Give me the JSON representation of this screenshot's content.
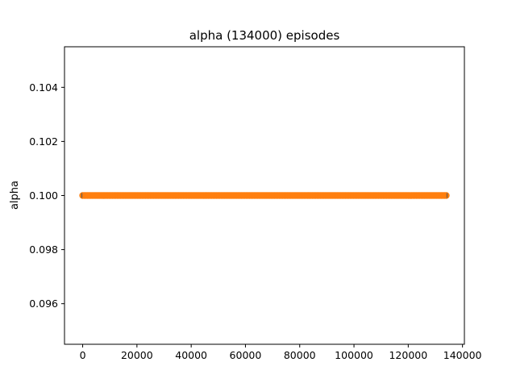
{
  "chart_data": {
    "type": "line",
    "title": "alpha (134000) episodes",
    "xlabel": "",
    "ylabel": "alpha",
    "xlim": [
      -6700,
      140700
    ],
    "ylim": [
      0.0945,
      0.1055
    ],
    "x_ticks": [
      0,
      20000,
      40000,
      60000,
      80000,
      100000,
      120000,
      140000
    ],
    "y_ticks": [
      0.096,
      0.098,
      0.1,
      0.102,
      0.104
    ],
    "x_tick_labels": [
      "0",
      "20000",
      "40000",
      "60000",
      "80000",
      "100000",
      "120000",
      "140000"
    ],
    "y_tick_labels": [
      "0.096",
      "0.098",
      "0.100",
      "0.102",
      "0.104"
    ],
    "grid": false,
    "series": [
      {
        "values_x": [
          0,
          134000
        ],
        "values_y": [
          0.1,
          0.1
        ],
        "color": "#1f77b4",
        "style": "line"
      },
      {
        "values_x": [
          0,
          134000
        ],
        "values_y": [
          0.1,
          0.1
        ],
        "color": "#ff7f0e",
        "style": "markers"
      }
    ]
  }
}
